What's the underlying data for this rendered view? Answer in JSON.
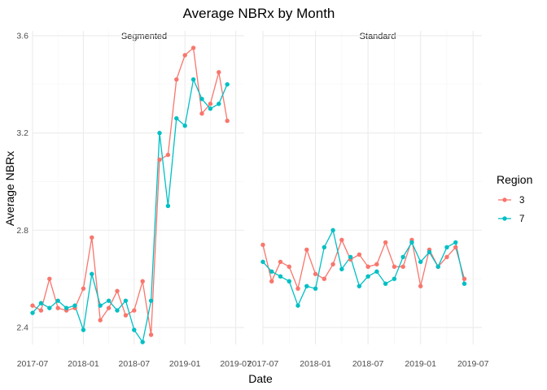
{
  "chart_data": {
    "type": "line",
    "title": "Average NBRx by Month",
    "xlabel": "Date",
    "ylabel": "Average NBRx",
    "ylim": [
      2.33,
      3.62
    ],
    "yticks": [
      2.4,
      2.8,
      3.2,
      3.6
    ],
    "ytick_labels": [
      "2.4",
      "2.8",
      "3.2",
      "3.6"
    ],
    "xlim": [
      0,
      25
    ],
    "xticks": [
      0,
      6,
      12,
      18,
      24
    ],
    "xtick_labels": [
      "2017-07",
      "2018-01",
      "2018-07",
      "2019-01",
      "2019-07"
    ],
    "x_dates": [
      "2017-07",
      "2017-08",
      "2017-09",
      "2017-10",
      "2017-11",
      "2017-12",
      "2018-01",
      "2018-02",
      "2018-03",
      "2018-04",
      "2018-05",
      "2018-06",
      "2018-07",
      "2018-08",
      "2018-09",
      "2018-10",
      "2018-11",
      "2018-12",
      "2019-01",
      "2019-02",
      "2019-03",
      "2019-04",
      "2019-05",
      "2019-06"
    ],
    "legend": {
      "title": "Region",
      "position": "right"
    },
    "grid": true,
    "panels": [
      {
        "name": "Segmented",
        "series": [
          {
            "name": "3",
            "color": "#F8766D",
            "x": [
              0,
              1,
              2,
              3,
              4,
              5,
              6,
              7,
              8,
              9,
              10,
              11,
              12,
              13,
              14,
              15,
              16,
              17,
              18,
              19,
              20,
              21,
              22,
              23
            ],
            "values": [
              2.49,
              2.47,
              2.6,
              2.48,
              2.47,
              2.48,
              2.56,
              2.77,
              2.43,
              2.48,
              2.55,
              2.45,
              2.47,
              2.59,
              2.37,
              3.09,
              3.11,
              3.42,
              3.52,
              3.55,
              3.28,
              3.32,
              3.45,
              3.25
            ]
          },
          {
            "name": "7",
            "color": "#00BFC4",
            "x": [
              0,
              1,
              2,
              3,
              4,
              5,
              6,
              7,
              8,
              9,
              10,
              11,
              12,
              13,
              14,
              15,
              16,
              17,
              18,
              19,
              20,
              21,
              22,
              23
            ],
            "values": [
              2.46,
              2.5,
              2.48,
              2.51,
              2.48,
              2.49,
              2.39,
              2.62,
              2.49,
              2.51,
              2.47,
              2.51,
              2.39,
              2.34,
              2.51,
              3.2,
              2.9,
              3.26,
              3.23,
              3.42,
              3.34,
              3.3,
              3.32,
              3.4
            ]
          }
        ]
      },
      {
        "name": "Standard",
        "series": [
          {
            "name": "3",
            "color": "#F8766D",
            "x": [
              0,
              1,
              2,
              3,
              4,
              5,
              6,
              7,
              8,
              9,
              10,
              11,
              12,
              13,
              14,
              15,
              16,
              17,
              18,
              19,
              20,
              21,
              22,
              23
            ],
            "values": [
              2.74,
              2.59,
              2.67,
              2.65,
              2.56,
              2.72,
              2.62,
              2.6,
              2.66,
              2.76,
              2.68,
              2.7,
              2.65,
              2.66,
              2.75,
              2.65,
              2.65,
              2.76,
              2.57,
              2.72,
              2.65,
              2.69,
              2.73,
              2.6
            ]
          },
          {
            "name": "7",
            "color": "#00BFC4",
            "x": [
              0,
              1,
              2,
              3,
              4,
              5,
              6,
              7,
              8,
              9,
              10,
              11,
              12,
              13,
              14,
              15,
              16,
              17,
              18,
              19,
              20,
              21,
              22,
              23
            ],
            "values": [
              2.67,
              2.63,
              2.61,
              2.59,
              2.49,
              2.57,
              2.56,
              2.73,
              2.8,
              2.64,
              2.69,
              2.57,
              2.61,
              2.63,
              2.58,
              2.6,
              2.69,
              2.75,
              2.67,
              2.71,
              2.65,
              2.73,
              2.75,
              2.58
            ]
          }
        ]
      }
    ]
  }
}
